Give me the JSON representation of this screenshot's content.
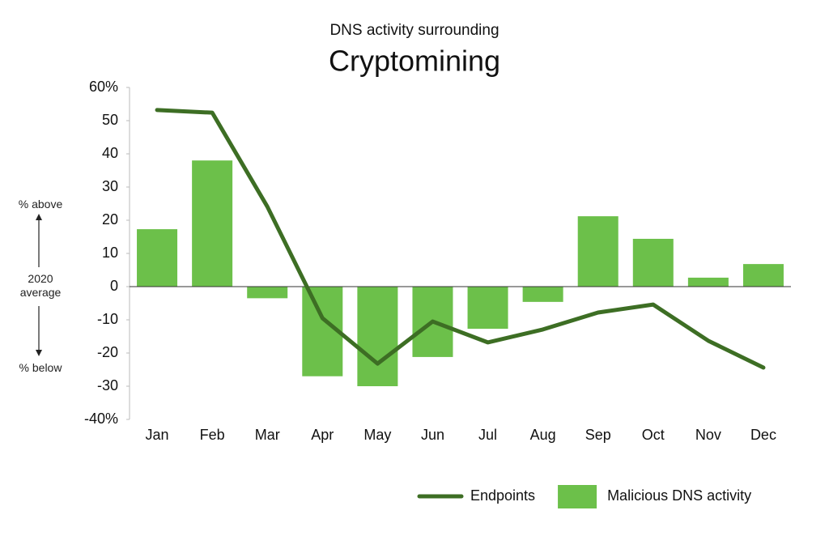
{
  "chart_data": {
    "type": "bar",
    "subtitle": "DNS activity surrounding",
    "title": "Cryptomining",
    "categories": [
      "Jan",
      "Feb",
      "Mar",
      "Apr",
      "May",
      "Jun",
      "Jul",
      "Aug",
      "Sep",
      "Oct",
      "Nov",
      "Dec"
    ],
    "series": [
      {
        "name": "Endpoints",
        "type": "line",
        "color": "#3d6e24",
        "values": [
          53.2,
          52.4,
          24.1,
          -9.5,
          -23.2,
          -10.5,
          -16.8,
          -12.9,
          -7.8,
          -5.4,
          -16.3,
          -24.4
        ]
      },
      {
        "name": "Malicious DNS activity",
        "type": "bar",
        "color": "#6cc04a",
        "values": [
          17.3,
          38,
          -3.5,
          -27,
          -30,
          -21.2,
          -12.7,
          -4.6,
          21.2,
          14.4,
          2.7,
          6.8
        ]
      }
    ],
    "ylim": [
      -40,
      60
    ],
    "yticks": [
      {
        "value": -40,
        "label": "-40%"
      },
      -30,
      -20,
      -10,
      0,
      10,
      20,
      30,
      40,
      50,
      {
        "value": 60,
        "label": "60%"
      }
    ],
    "annotations": [
      "% above",
      "2020 average",
      "% below"
    ],
    "legend": "bottom-right"
  }
}
